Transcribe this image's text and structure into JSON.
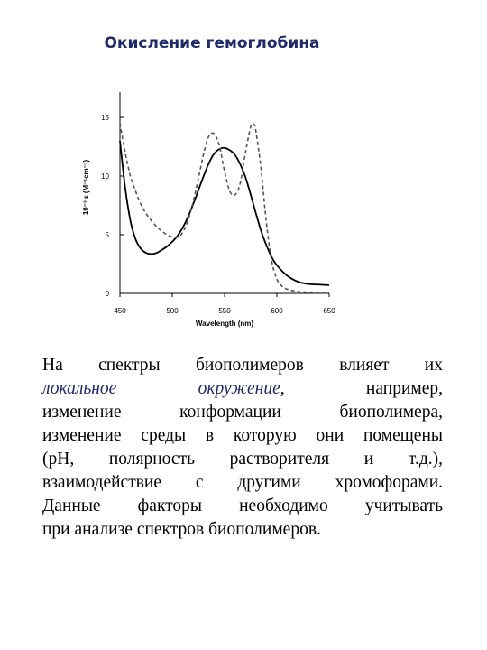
{
  "slide": {
    "title": "Окисление гемоглобина"
  },
  "chart_data": {
    "type": "line",
    "title": "",
    "xlabel": "Wavelength (nm)",
    "ylabel": "10⁻³ ε (M⁻¹cm⁻¹)",
    "xlim": [
      450,
      650
    ],
    "ylim": [
      0,
      15
    ],
    "xticks": [
      "450",
      "500",
      "550",
      "600",
      "650"
    ],
    "yticks": [
      "0",
      "5",
      "10",
      "15"
    ],
    "grid": false,
    "legend": "none",
    "series": [
      {
        "style": "solid",
        "color": "#000000",
        "x": [
          450,
          455,
          460,
          465,
          470,
          475,
          480,
          485,
          490,
          495,
          500,
          505,
          510,
          515,
          520,
          525,
          530,
          535,
          540,
          545,
          550,
          555,
          560,
          565,
          570,
          575,
          580,
          585,
          590,
          595,
          600,
          610,
          620,
          630,
          640,
          650
        ],
        "y": [
          13.0,
          9.0,
          6.2,
          4.6,
          3.8,
          3.45,
          3.35,
          3.45,
          3.7,
          4.0,
          4.4,
          4.9,
          5.6,
          6.5,
          7.6,
          8.8,
          10.0,
          11.1,
          11.9,
          12.3,
          12.4,
          12.2,
          11.8,
          11.0,
          9.9,
          8.4,
          6.8,
          5.3,
          4.1,
          3.1,
          2.4,
          1.5,
          1.0,
          0.8,
          0.75,
          0.7
        ]
      },
      {
        "style": "dashed",
        "color": "#555555",
        "x": [
          450,
          455,
          460,
          465,
          470,
          475,
          480,
          485,
          490,
          495,
          500,
          505,
          510,
          515,
          520,
          525,
          530,
          535,
          540,
          545,
          550,
          555,
          560,
          565,
          570,
          575,
          578,
          580,
          585,
          590,
          595,
          600,
          605,
          610,
          620,
          630,
          640,
          650
        ],
        "y": [
          14.5,
          12.0,
          10.0,
          8.7,
          7.6,
          6.8,
          6.2,
          5.7,
          5.3,
          5.0,
          4.8,
          4.8,
          5.2,
          6.2,
          7.8,
          9.8,
          11.9,
          13.4,
          13.6,
          12.6,
          10.4,
          8.7,
          8.4,
          9.4,
          12.0,
          14.2,
          14.4,
          13.8,
          10.5,
          6.0,
          2.8,
          1.2,
          0.6,
          0.35,
          0.15,
          0.1,
          0.05,
          0.05
        ]
      }
    ]
  },
  "body": {
    "line1": "На спектры биополимеров влияет их",
    "line2_emph": "локальное окружение",
    "line2_rest": ", например,",
    "line3": "изменение конформации биополимера,",
    "line4": "изменение среды в которую они помещены",
    "line5": "(pH, полярность растворителя и т.д.),",
    "line6": "взаимодействие с другими хромофорами.",
    "line7": "Данные факторы необходимо учитывать",
    "line8": "при анализе спектров биополимеров."
  }
}
